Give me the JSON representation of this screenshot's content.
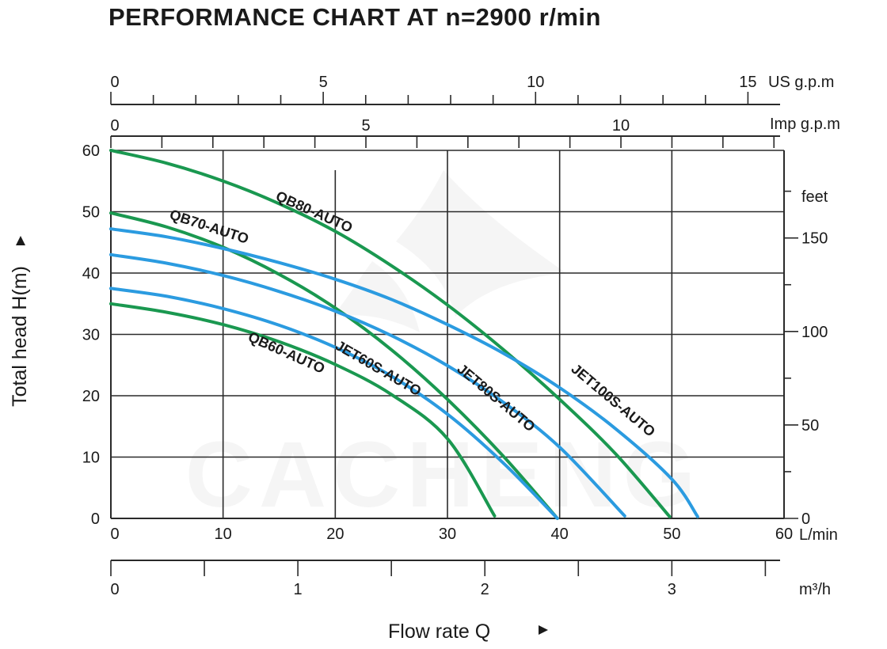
{
  "chart_data": {
    "type": "line",
    "title": "PERFORMANCE CHART AT n=2900 r/min",
    "xlabel": "Flow rate  Q",
    "ylabel": "Total  head H(m)",
    "xlim": [
      0,
      60
    ],
    "ylim": [
      0,
      60
    ],
    "x_unit": "L/min",
    "x_ticks": [
      0,
      10,
      20,
      30,
      40,
      50,
      60
    ],
    "y_ticks": [
      0,
      10,
      20,
      30,
      40,
      50,
      60
    ],
    "secondary_axes": {
      "us_gpm": {
        "unit": "US g.p.m",
        "ticks": [
          0,
          5,
          10,
          15
        ]
      },
      "imp_gpm": {
        "unit": "Imp g.p.m",
        "ticks": [
          0,
          5,
          10
        ]
      },
      "m3h": {
        "unit": "m³/h",
        "ticks": [
          0,
          1,
          2,
          3
        ]
      },
      "feet": {
        "unit": "feet",
        "ticks": [
          0,
          50,
          100,
          150
        ]
      }
    },
    "grid": true,
    "watermark": "CACHENG",
    "series": [
      {
        "name": "QB60-AUTO",
        "color": "#1a9850",
        "points": [
          [
            0,
            35
          ],
          [
            5,
            33.6
          ],
          [
            10,
            31.6
          ],
          [
            15,
            28.8
          ],
          [
            20,
            25.1
          ],
          [
            25,
            20.2
          ],
          [
            30,
            13
          ],
          [
            34.2,
            0.4
          ]
        ]
      },
      {
        "name": "QB70-AUTO",
        "color": "#1a9850",
        "points": [
          [
            0,
            49.8
          ],
          [
            5,
            47.5
          ],
          [
            10,
            44.2
          ],
          [
            15,
            39.8
          ],
          [
            20,
            34.3
          ],
          [
            25,
            27.5
          ],
          [
            30,
            19.4
          ],
          [
            35,
            10.1
          ],
          [
            39.8,
            0
          ]
        ]
      },
      {
        "name": "QB80-AUTO",
        "color": "#1a9850",
        "points": [
          [
            0,
            60
          ],
          [
            5,
            57.9
          ],
          [
            10,
            55
          ],
          [
            15,
            51.3
          ],
          [
            20,
            46.8
          ],
          [
            25,
            41.2
          ],
          [
            30,
            34.8
          ],
          [
            35,
            27.5
          ],
          [
            40,
            19.4
          ],
          [
            45,
            10.5
          ],
          [
            49.8,
            0.3
          ]
        ]
      },
      {
        "name": "JET60S-AUTO",
        "color": "#2b9be0",
        "points": [
          [
            0,
            37.5
          ],
          [
            5,
            36.2
          ],
          [
            10,
            34.2
          ],
          [
            15,
            31.5
          ],
          [
            20,
            27.9
          ],
          [
            25,
            23.2
          ],
          [
            30,
            17
          ],
          [
            35,
            9
          ],
          [
            39.8,
            0
          ]
        ]
      },
      {
        "name": "JET80S-AUTO",
        "color": "#2b9be0",
        "points": [
          [
            0,
            43
          ],
          [
            5,
            41.6
          ],
          [
            10,
            39.6
          ],
          [
            15,
            37
          ],
          [
            20,
            33.8
          ],
          [
            25,
            29.8
          ],
          [
            30,
            24.9
          ],
          [
            35,
            18.9
          ],
          [
            40,
            11.6
          ],
          [
            45.8,
            0.4
          ]
        ]
      },
      {
        "name": "JET100S-AUTO",
        "color": "#2b9be0",
        "points": [
          [
            0,
            47.2
          ],
          [
            5,
            45.9
          ],
          [
            10,
            44
          ],
          [
            15,
            41.7
          ],
          [
            20,
            39
          ],
          [
            25,
            35.7
          ],
          [
            30,
            31.6
          ],
          [
            35,
            26.9
          ],
          [
            40,
            21.3
          ],
          [
            45,
            14.6
          ],
          [
            50,
            6.4
          ],
          [
            52.3,
            0.3
          ]
        ]
      }
    ]
  }
}
